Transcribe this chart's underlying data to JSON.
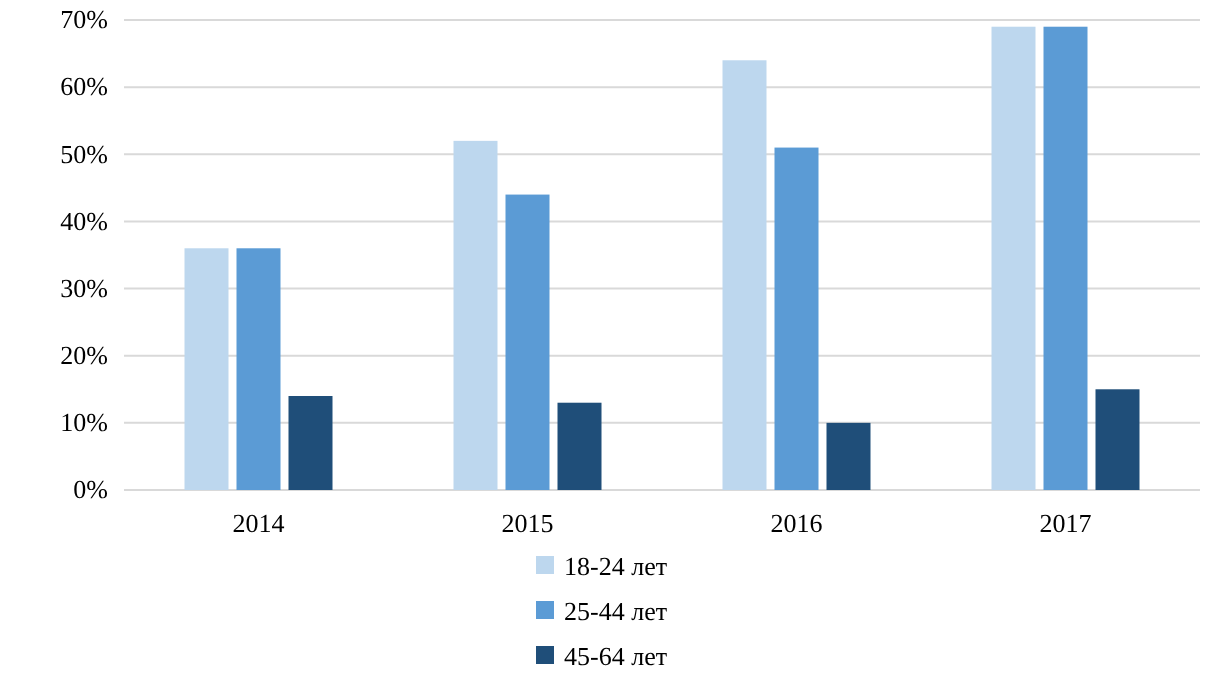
{
  "chart_data": {
    "type": "bar",
    "categories": [
      "2014",
      "2015",
      "2016",
      "2017"
    ],
    "series": [
      {
        "name": "18-24 лет",
        "color": "#bdd7ee",
        "values": [
          36,
          52,
          64,
          69
        ]
      },
      {
        "name": "25-44 лет",
        "color": "#5b9bd5",
        "values": [
          36,
          44,
          51,
          69
        ]
      },
      {
        "name": "45-64 лет",
        "color": "#1f4e79",
        "values": [
          14,
          13,
          10,
          15
        ]
      }
    ],
    "ylim": [
      0,
      70
    ],
    "yticks": [
      {
        "value": 0,
        "label": "0%"
      },
      {
        "value": 10,
        "label": "10%"
      },
      {
        "value": 20,
        "label": "20%"
      },
      {
        "value": 30,
        "label": "30%"
      },
      {
        "value": 40,
        "label": "40%"
      },
      {
        "value": 50,
        "label": "50%"
      },
      {
        "value": 60,
        "label": "60%"
      },
      {
        "value": 70,
        "label": "70%"
      }
    ],
    "grid": "y",
    "legend": "bottom"
  }
}
